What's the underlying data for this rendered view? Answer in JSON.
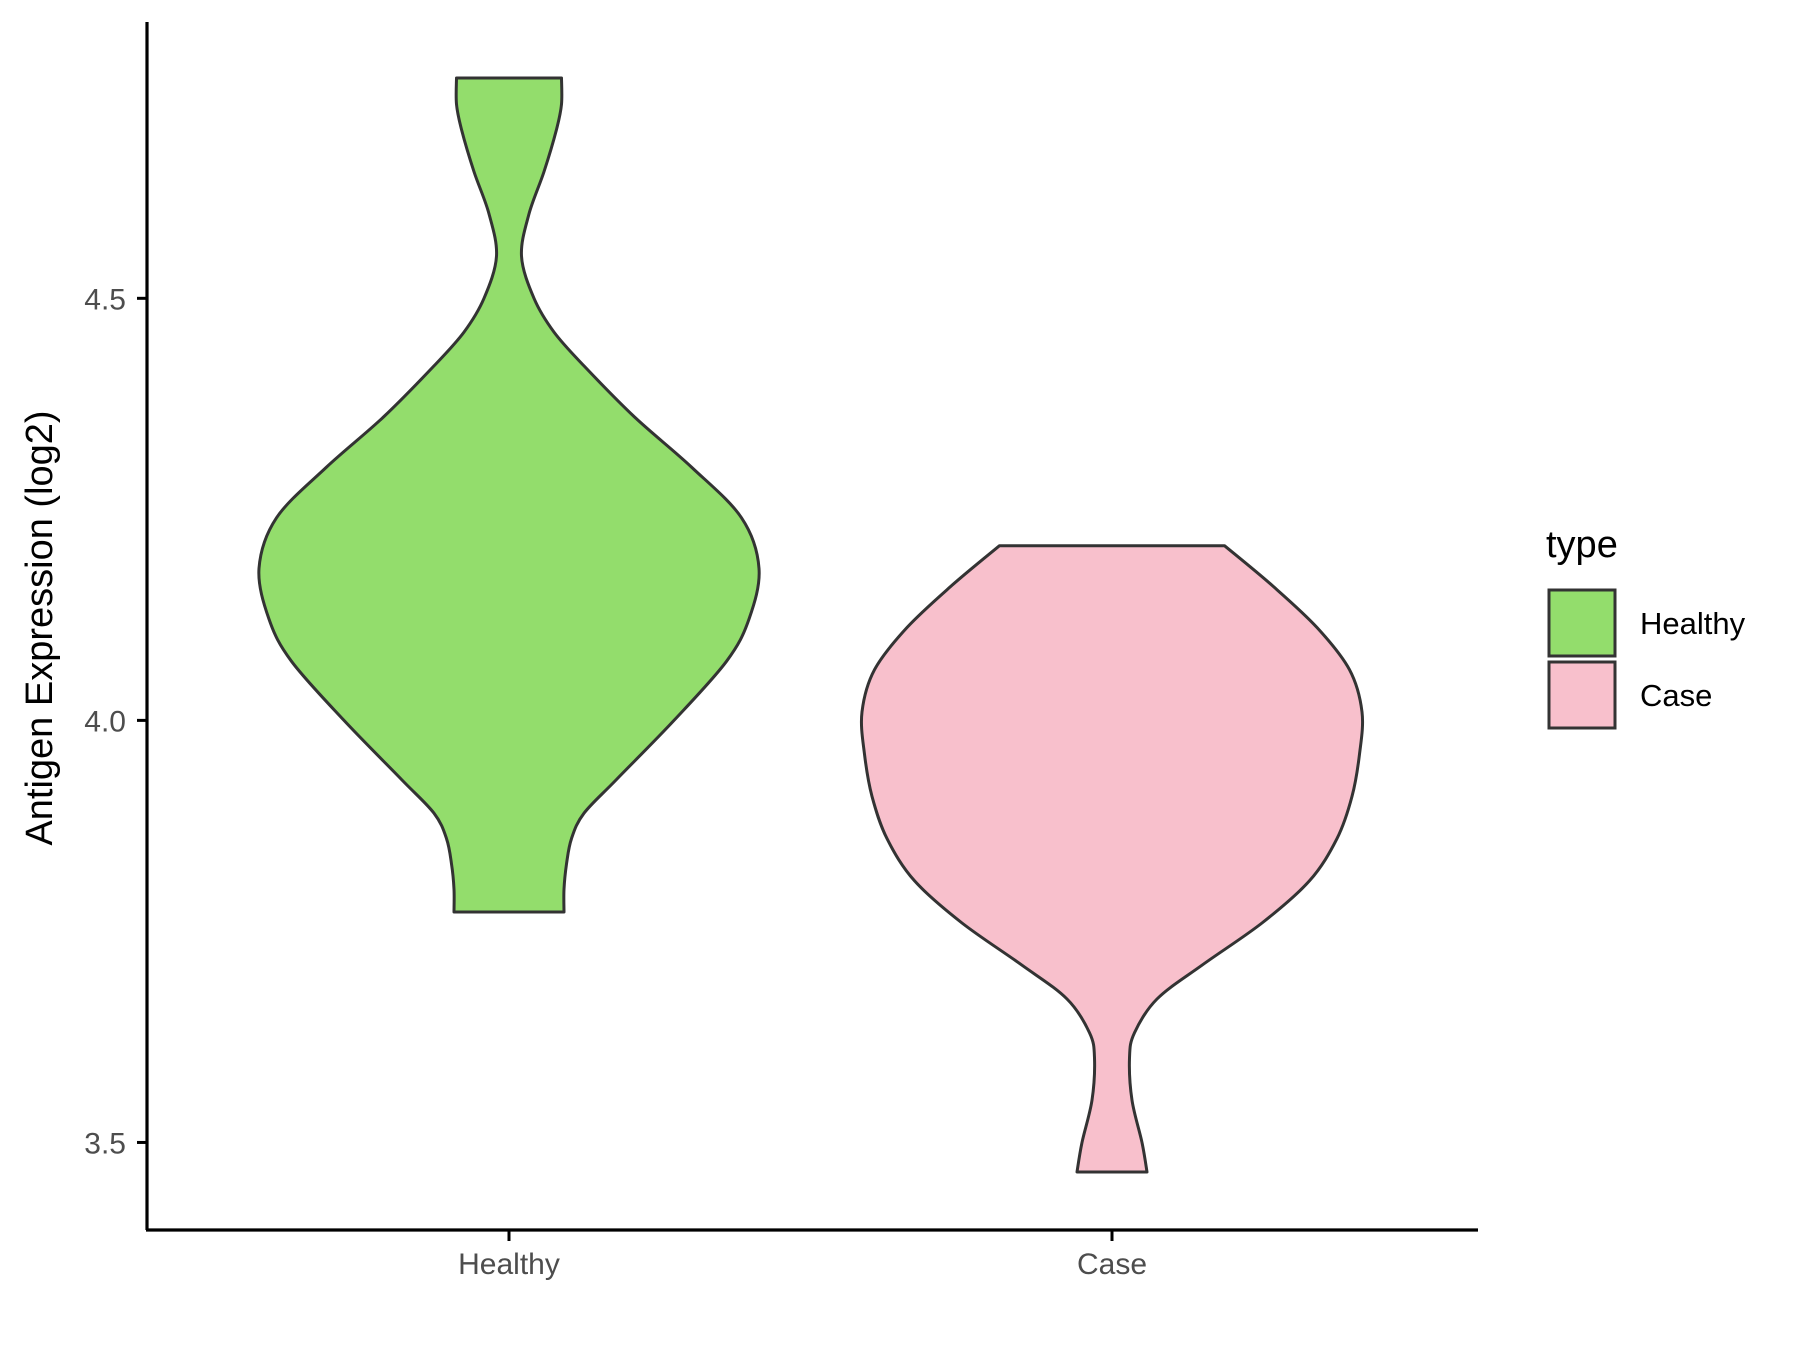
{
  "chart_data": {
    "type": "violin",
    "title": "",
    "xlabel": "",
    "ylabel": "Antigen Expression (log2)",
    "ylim": [
      3.42,
      4.79
    ],
    "yticks": [
      3.5,
      4.0,
      4.5
    ],
    "ytick_labels": [
      "3.5",
      "4.0",
      "4.5"
    ],
    "categories": [
      "Healthy",
      "Case"
    ],
    "grid": false,
    "legend": {
      "title": "type",
      "position": "right",
      "entries": [
        {
          "label": "Healthy",
          "color": "#93DD6C"
        },
        {
          "label": "Case",
          "color": "#F8C0CC"
        }
      ]
    },
    "series": [
      {
        "category": "Healthy",
        "color": "#93DD6C",
        "min": 3.773,
        "max": 4.761,
        "density_profile": [
          {
            "y": 3.773,
            "w": 0.22
          },
          {
            "y": 3.8,
            "w": 0.22
          },
          {
            "y": 3.83,
            "w": 0.23
          },
          {
            "y": 3.86,
            "w": 0.25
          },
          {
            "y": 3.89,
            "w": 0.3
          },
          {
            "y": 3.93,
            "w": 0.43
          },
          {
            "y": 4.0,
            "w": 0.66
          },
          {
            "y": 4.07,
            "w": 0.87
          },
          {
            "y": 4.12,
            "w": 0.96
          },
          {
            "y": 4.18,
            "w": 1.0
          },
          {
            "y": 4.24,
            "w": 0.93
          },
          {
            "y": 4.3,
            "w": 0.73
          },
          {
            "y": 4.36,
            "w": 0.5
          },
          {
            "y": 4.42,
            "w": 0.3
          },
          {
            "y": 4.46,
            "w": 0.18
          },
          {
            "y": 4.5,
            "w": 0.1
          },
          {
            "y": 4.55,
            "w": 0.05
          },
          {
            "y": 4.6,
            "w": 0.08
          },
          {
            "y": 4.65,
            "w": 0.14
          },
          {
            "y": 4.7,
            "w": 0.19
          },
          {
            "y": 4.73,
            "w": 0.21
          },
          {
            "y": 4.761,
            "w": 0.21
          }
        ]
      },
      {
        "category": "Case",
        "color": "#F8C0CC",
        "min": 3.465,
        "max": 4.207,
        "density_profile": [
          {
            "y": 3.465,
            "w": 0.14
          },
          {
            "y": 3.5,
            "w": 0.12
          },
          {
            "y": 3.55,
            "w": 0.08
          },
          {
            "y": 3.6,
            "w": 0.07
          },
          {
            "y": 3.63,
            "w": 0.09
          },
          {
            "y": 3.67,
            "w": 0.18
          },
          {
            "y": 3.71,
            "w": 0.36
          },
          {
            "y": 3.76,
            "w": 0.6
          },
          {
            "y": 3.81,
            "w": 0.79
          },
          {
            "y": 3.86,
            "w": 0.9
          },
          {
            "y": 3.91,
            "w": 0.96
          },
          {
            "y": 3.96,
            "w": 0.99
          },
          {
            "y": 4.01,
            "w": 1.0
          },
          {
            "y": 4.06,
            "w": 0.95
          },
          {
            "y": 4.11,
            "w": 0.82
          },
          {
            "y": 4.16,
            "w": 0.64
          },
          {
            "y": 4.207,
            "w": 0.45
          }
        ]
      }
    ]
  }
}
